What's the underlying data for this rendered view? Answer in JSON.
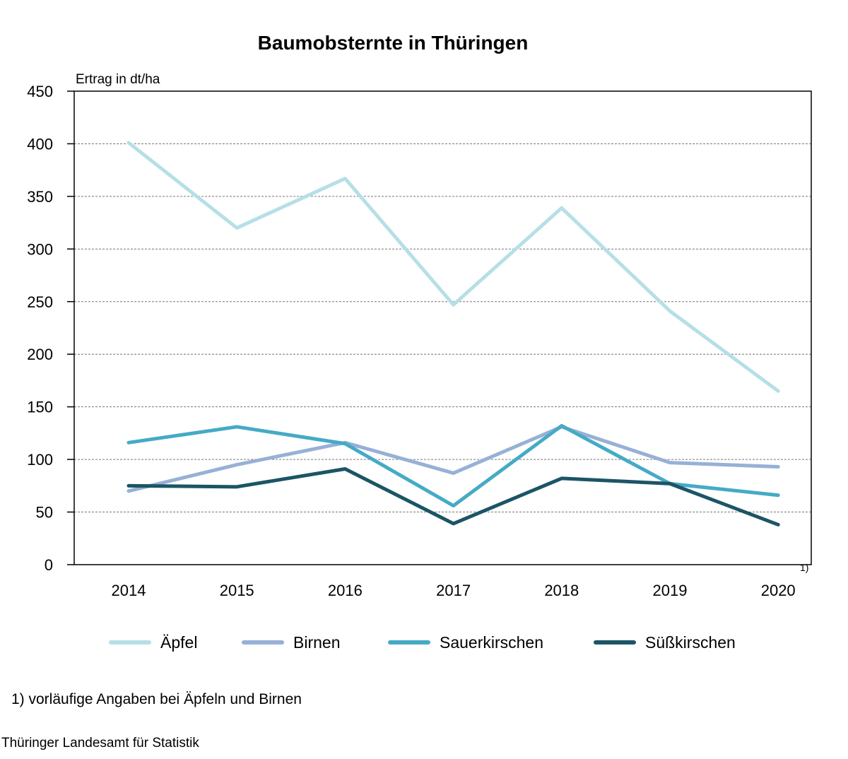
{
  "chart_data": {
    "type": "line",
    "title": "Baumobsternte in Thüringen",
    "ylabel": "Ertrag in dt/ha",
    "xlabel": "",
    "categories": [
      "2014",
      "2015",
      "2016",
      "2017",
      "2018",
      "2019",
      "2020"
    ],
    "footnote_marker": "1)",
    "ylim": [
      0,
      450
    ],
    "yticks": [
      "0",
      "50",
      "100",
      "150",
      "200",
      "250",
      "300",
      "350",
      "400",
      "450"
    ],
    "grid": true,
    "legend_position": "bottom",
    "series": [
      {
        "name": "Äpfel",
        "color": "#b6dfe6",
        "values": [
          401,
          320,
          367,
          247,
          339,
          241,
          165
        ]
      },
      {
        "name": "Birnen",
        "color": "#97b0d6",
        "values": [
          70,
          95,
          116,
          87,
          131,
          97,
          93
        ]
      },
      {
        "name": "Sauerkirschen",
        "color": "#45aac6",
        "values": [
          116,
          131,
          115,
          56,
          132,
          77,
          66
        ]
      },
      {
        "name": "Süßkirschen",
        "color": "#1b5566",
        "values": [
          75,
          74,
          91,
          39,
          82,
          77,
          38
        ]
      }
    ]
  },
  "footnote": "1) vorläufige Angaben bei Äpfeln und Birnen",
  "source": "Thüringer Landesamt für Statistik"
}
